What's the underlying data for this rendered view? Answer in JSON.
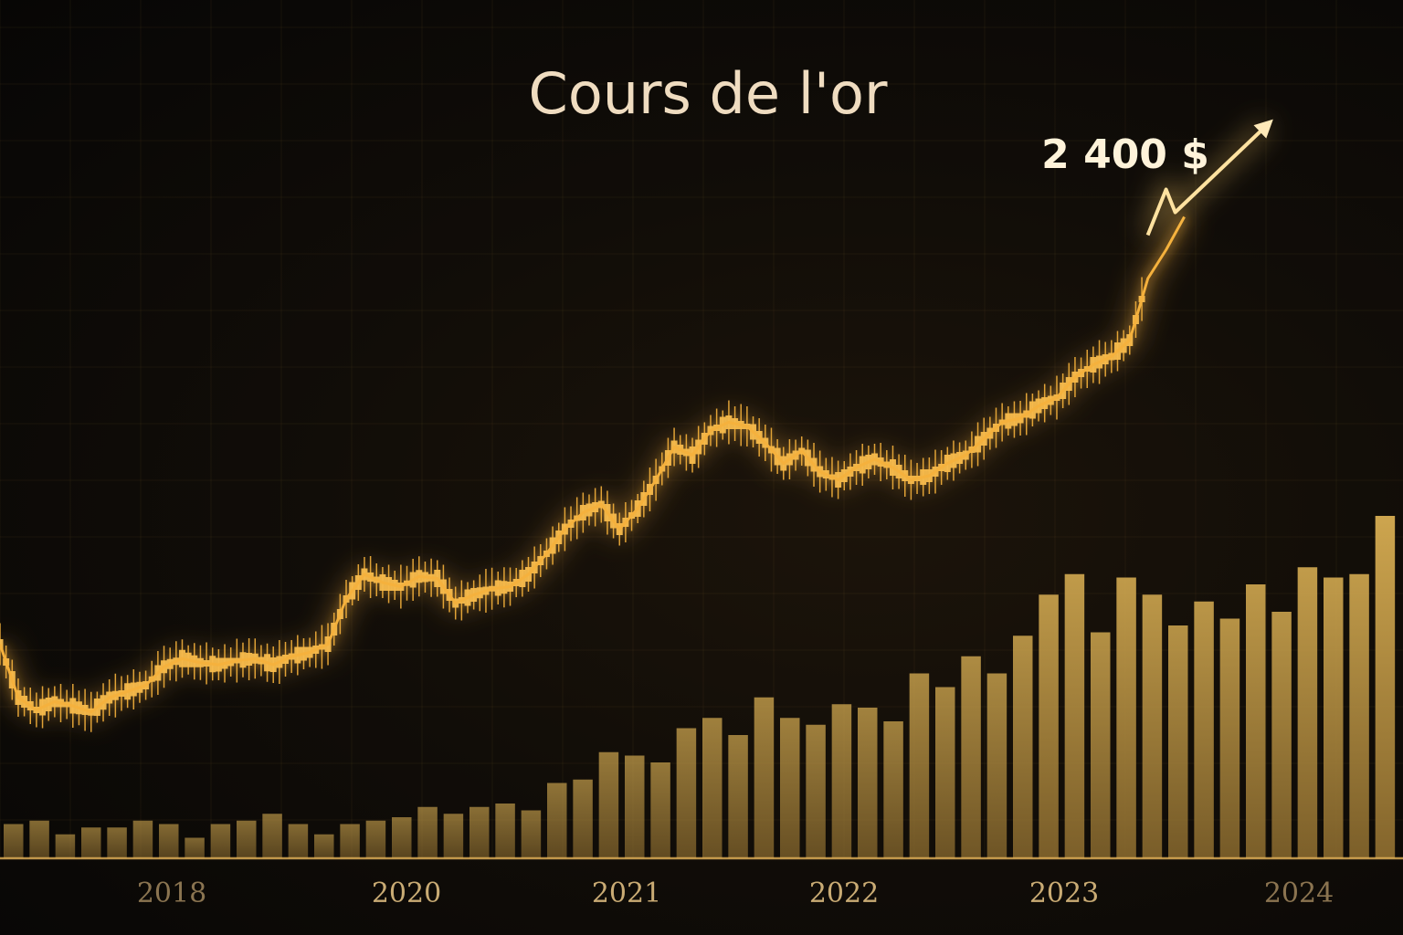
{
  "chart_data": {
    "type": "line",
    "title": "Cours de l'or",
    "annotation": "2 400 $",
    "xlabel": "",
    "ylabel": "",
    "x_ticks": [
      "2018",
      "2020",
      "2021",
      "2022",
      "2023",
      "2024"
    ],
    "grid": true,
    "legend": "none",
    "colors": {
      "price": "#f5b13c",
      "price_glow": "#ffcf6a",
      "bars_low": "#8a6a2e",
      "bars_high": "#e0b75a",
      "title": "#efdcc0",
      "tick_label": "#b59869"
    },
    "price_series": {
      "x": [
        2017.0,
        2017.1,
        2017.2,
        2017.3,
        2017.4,
        2017.5,
        2017.6,
        2017.7,
        2017.8,
        2017.9,
        2018.0,
        2018.1,
        2018.2,
        2018.3,
        2018.4,
        2018.5,
        2018.6,
        2018.7,
        2018.8,
        2018.9,
        2019.0,
        2019.1,
        2019.2,
        2019.3,
        2019.4,
        2019.5,
        2019.6,
        2019.7,
        2019.8,
        2019.9,
        2020.0,
        2020.1,
        2020.2,
        2020.3,
        2020.4,
        2020.5,
        2020.6,
        2020.7,
        2020.8,
        2020.9,
        2021.0,
        2021.1,
        2021.2,
        2021.3,
        2021.4,
        2021.5,
        2021.6,
        2021.7,
        2021.8,
        2021.9,
        2022.0,
        2022.1,
        2022.2,
        2022.3,
        2022.4,
        2022.5,
        2022.6,
        2022.7,
        2022.8,
        2022.9,
        2023.0,
        2023.1,
        2023.2,
        2023.3,
        2023.4,
        2023.5
      ],
      "y": [
        1360,
        1230,
        1200,
        1220,
        1210,
        1195,
        1230,
        1245,
        1260,
        1305,
        1325,
        1315,
        1310,
        1320,
        1325,
        1310,
        1330,
        1340,
        1360,
        1470,
        1530,
        1510,
        1500,
        1525,
        1520,
        1460,
        1480,
        1495,
        1500,
        1530,
        1580,
        1640,
        1680,
        1700,
        1640,
        1690,
        1760,
        1840,
        1820,
        1880,
        1900,
        1890,
        1850,
        1800,
        1830,
        1780,
        1760,
        1790,
        1810,
        1790,
        1760,
        1770,
        1800,
        1820,
        1860,
        1900,
        1910,
        1940,
        1960,
        2010,
        2040,
        2060,
        2100,
        2250,
        2320,
        2400
      ]
    },
    "volume_series": {
      "values": [
        0.1,
        0.11,
        0.07,
        0.09,
        0.09,
        0.11,
        0.1,
        0.06,
        0.1,
        0.11,
        0.13,
        0.1,
        0.07,
        0.1,
        0.11,
        0.12,
        0.15,
        0.13,
        0.15,
        0.16,
        0.14,
        0.22,
        0.23,
        0.31,
        0.3,
        0.28,
        0.38,
        0.41,
        0.36,
        0.47,
        0.41,
        0.39,
        0.45,
        0.44,
        0.4,
        0.54,
        0.5,
        0.59,
        0.54,
        0.65,
        0.77,
        0.83,
        0.66,
        0.82,
        0.77,
        0.68,
        0.75,
        0.7,
        0.8,
        0.72,
        0.85,
        0.82,
        0.83,
        1.0
      ]
    }
  }
}
